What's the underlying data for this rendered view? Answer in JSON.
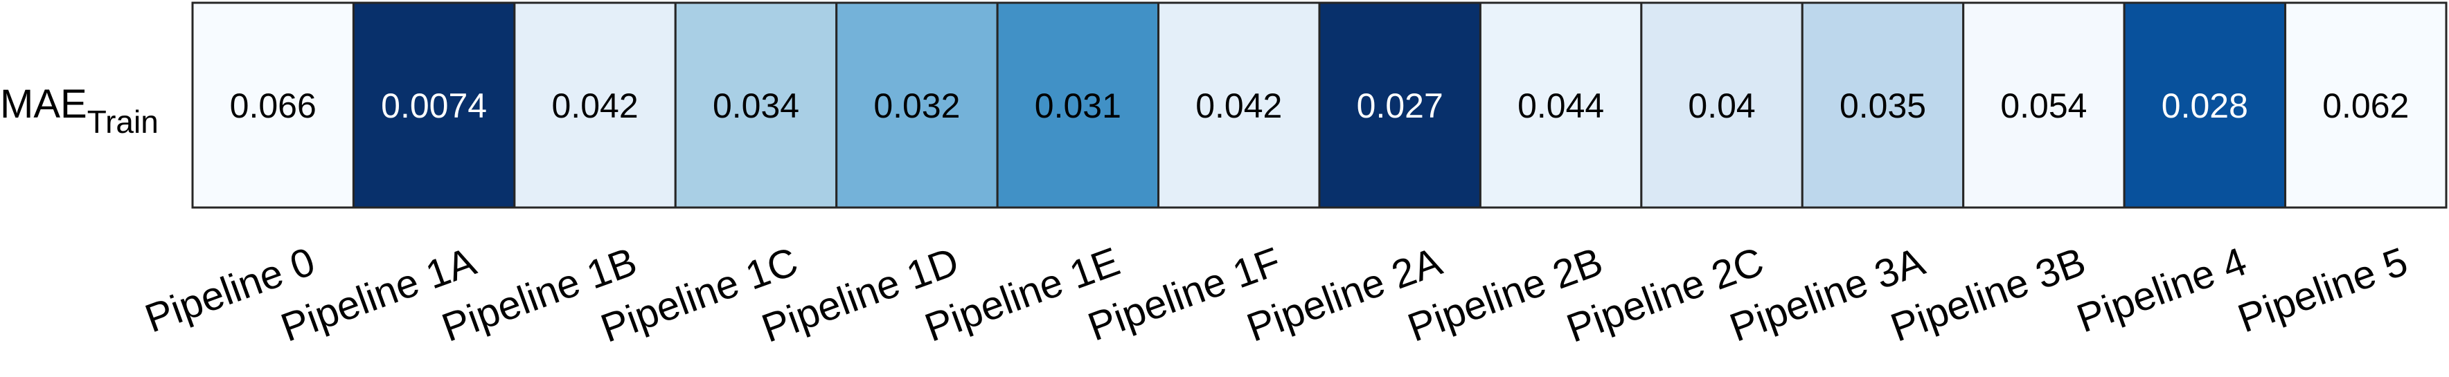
{
  "chart_data": {
    "type": "heatmap",
    "title": "",
    "row_label": {
      "main": "MAE",
      "sub": "Train"
    },
    "categories": [
      "Pipeline 0",
      "Pipeline 1A",
      "Pipeline 1B",
      "Pipeline 1C",
      "Pipeline 1D",
      "Pipeline 1E",
      "Pipeline 1F",
      "Pipeline 2A",
      "Pipeline 2B",
      "Pipeline 2C",
      "Pipeline 3A",
      "Pipeline 3B",
      "Pipeline 4",
      "Pipeline 5"
    ],
    "values": [
      "0.066",
      "0.0074",
      "0.042",
      "0.034",
      "0.032",
      "0.031",
      "0.042",
      "0.027",
      "0.044",
      "0.04",
      "0.035",
      "0.054",
      "0.028",
      "0.062"
    ],
    "cell_colors": [
      "#f7fbff",
      "#08306b",
      "#e4eff9",
      "#a9cfe5",
      "#74b2d9",
      "#4191c6",
      "#e4eff9",
      "#08306b",
      "#eaf3fb",
      "#dae8f5",
      "#bdd7ec",
      "#f4f9fe",
      "#08519c",
      "#f7fbff"
    ],
    "text_colors": [
      "#000000",
      "#ffffff",
      "#000000",
      "#000000",
      "#000000",
      "#000000",
      "#000000",
      "#ffffff",
      "#000000",
      "#000000",
      "#000000",
      "#000000",
      "#ffffff",
      "#000000"
    ],
    "colormap": "Blues",
    "grid": true,
    "legend": "none"
  }
}
